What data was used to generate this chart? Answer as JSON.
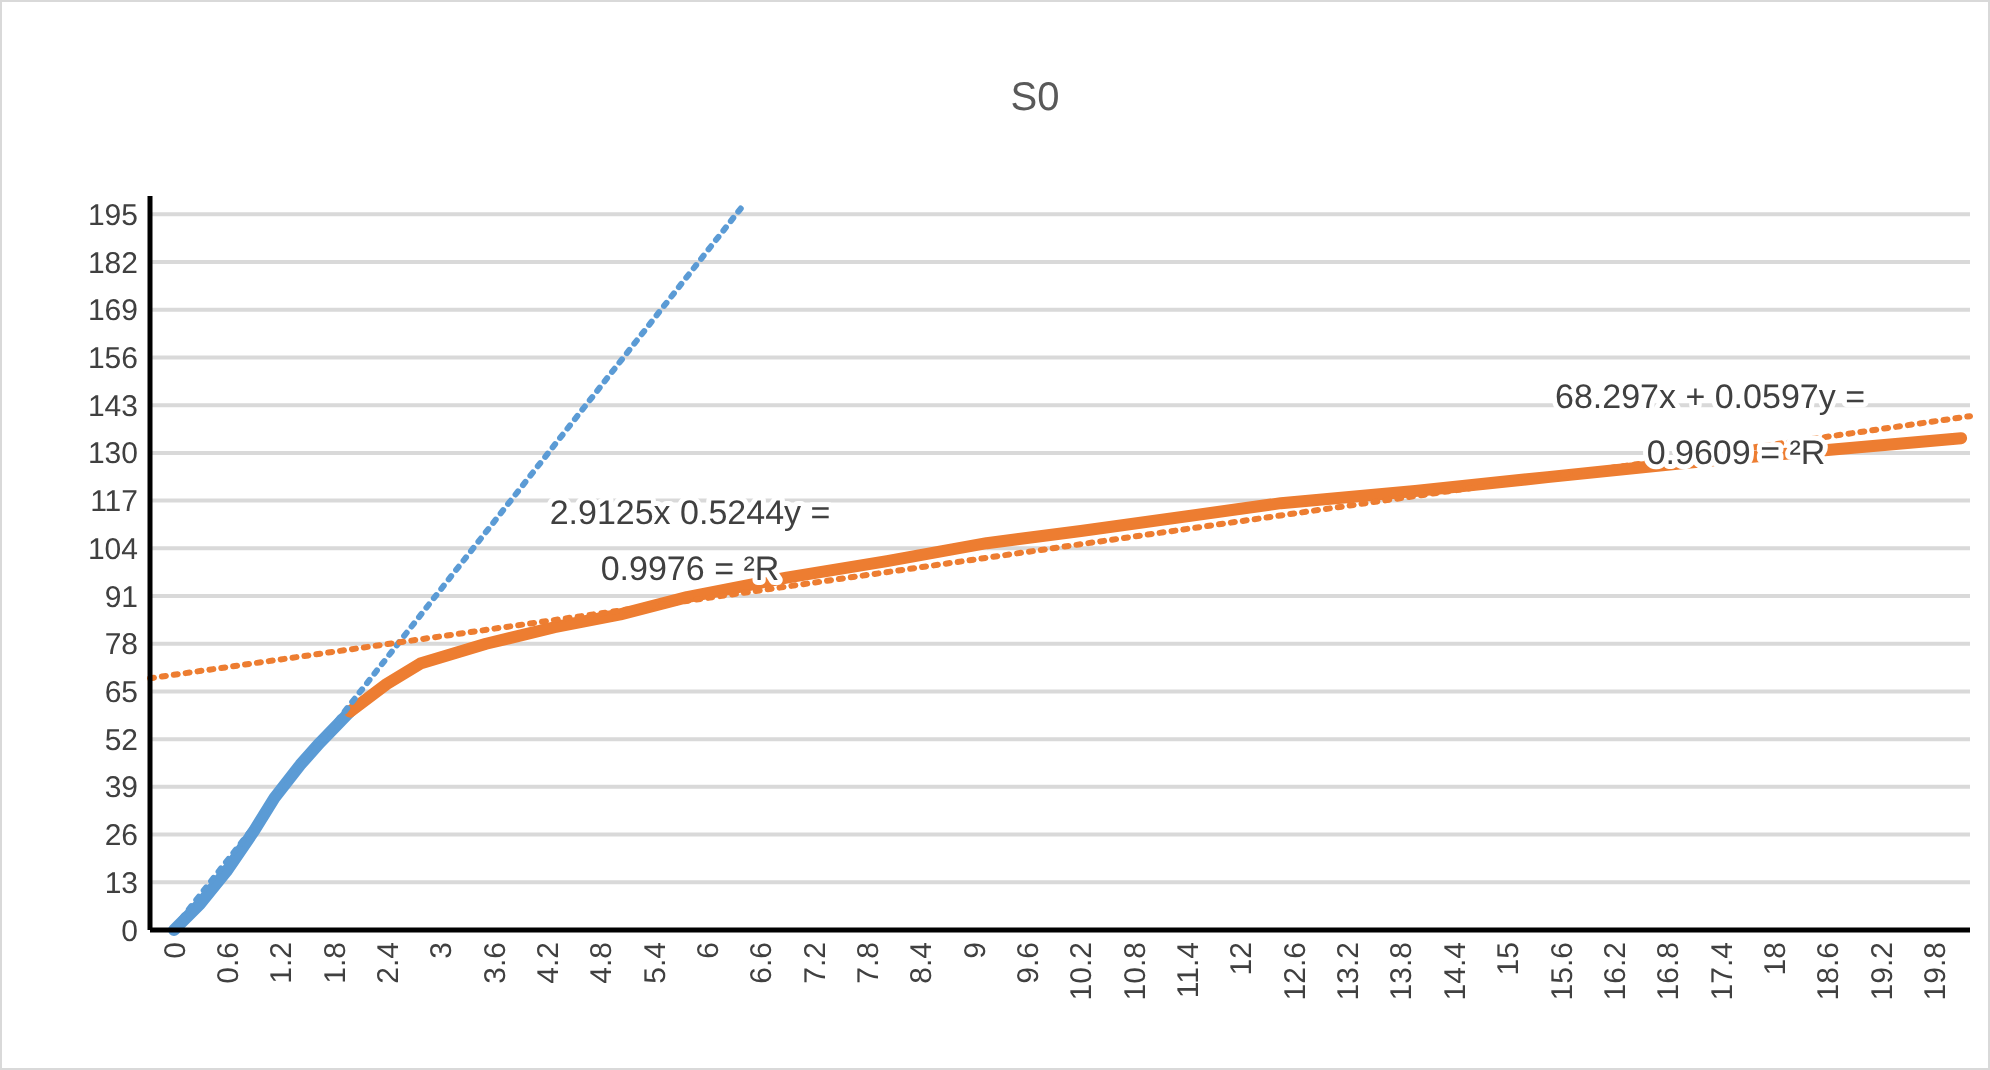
{
  "chart_data": {
    "type": "line",
    "title": "S0",
    "xlim": [
      -0.27,
      20.2
    ],
    "ylim": [
      0,
      200
    ],
    "xticks": [
      0,
      0.6,
      1.2,
      1.8,
      2.4,
      3,
      3.6,
      4.2,
      4.8,
      5.4,
      6,
      6.6,
      7.2,
      7.8,
      8.4,
      9,
      9.6,
      10.2,
      10.8,
      11.4,
      12,
      12.6,
      13.2,
      13.8,
      14.4,
      15,
      15.6,
      16.2,
      16.8,
      17.4,
      18,
      18.6,
      19.2,
      19.8
    ],
    "yticks": [
      0,
      13,
      26,
      39,
      52,
      65,
      78,
      91,
      104,
      117,
      130,
      143,
      156,
      169,
      182,
      195
    ],
    "grid": "y",
    "series": [
      {
        "color": "#5b9bd5",
        "x": [
          0,
          0.29,
          0.59,
          0.9,
          1.13,
          1.42,
          1.64,
          1.98
        ],
        "values": [
          0,
          7,
          16,
          27,
          36,
          45,
          51,
          59.5
        ]
      },
      {
        "color": "#ed7d31",
        "x": [
          1.98,
          2.39,
          2.77,
          3.51,
          4.28,
          5.02,
          5.77,
          6.89,
          8.02,
          9.14,
          10.2,
          12.45,
          13.96,
          15.45,
          16.96,
          18.47,
          20.1
        ],
        "values": [
          59.5,
          67,
          72.6,
          78,
          82.5,
          86,
          90.7,
          96,
          100.5,
          105.4,
          108.7,
          116.3,
          119.6,
          123.4,
          127.2,
          130.5,
          134
        ]
      },
      {
        "color": "#5b9bd5",
        "line_style": "dotted",
        "x": [
          0,
          6.42
        ],
        "values": [
          0.5,
          198
        ]
      },
      {
        "color": "#ed7d31",
        "line_style": "dotted",
        "x": [
          -0.27,
          20.2
        ],
        "values": [
          68.6,
          140
        ]
      }
    ],
    "annotations": [
      "2.9125x  0.5244y =",
      "0.9976 = ²R",
      "68.297x + 0.0597y =",
      "0.9609 = ²R"
    ]
  }
}
